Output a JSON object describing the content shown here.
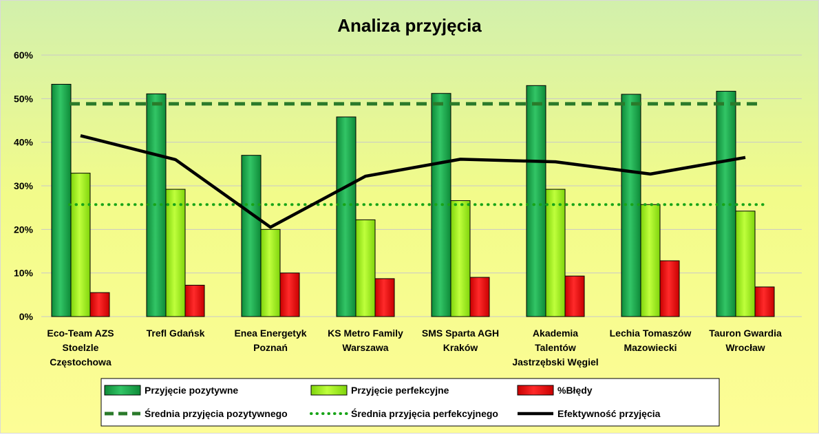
{
  "chart_data": {
    "type": "bar",
    "title": "Analiza przyjęcia",
    "categories": [
      [
        "Eco-Team AZS",
        "Stoelzle",
        "Częstochowa"
      ],
      [
        "Trefl Gdańsk"
      ],
      [
        "Enea Energetyk",
        "Poznań"
      ],
      [
        "KS Metro Family",
        "Warszawa"
      ],
      [
        "SMS Sparta AGH",
        "Kraków"
      ],
      [
        "Akademia",
        "Talentów",
        "Jastrzębski Węgiel"
      ],
      [
        "Lechia Tomaszów",
        "Mazowiecki"
      ],
      [
        "Tauron Gwardia",
        "Wrocław"
      ]
    ],
    "ylim": [
      0,
      0.6
    ],
    "yticks": [
      0,
      0.1,
      0.2,
      0.3,
      0.4,
      0.5,
      0.6
    ],
    "ytick_labels": [
      "0%",
      "10%",
      "20%",
      "30%",
      "40%",
      "50%",
      "60%"
    ],
    "grid": true,
    "legend_position": "bottom",
    "series": [
      {
        "name": "Przyjęcie pozytywne",
        "kind": "bar",
        "color": "#1aa84a",
        "values": [
          0.533,
          0.511,
          0.37,
          0.458,
          0.512,
          0.53,
          0.51,
          0.517
        ]
      },
      {
        "name": "Przyjęcie perfekcyjne",
        "kind": "bar",
        "color": "#99ee22",
        "values": [
          0.329,
          0.292,
          0.2,
          0.222,
          0.266,
          0.292,
          0.257,
          0.242
        ]
      },
      {
        "name": "%Błędy",
        "kind": "bar",
        "color": "#ee1111",
        "values": [
          0.055,
          0.072,
          0.1,
          0.087,
          0.09,
          0.093,
          0.128,
          0.068
        ]
      },
      {
        "name": "Średnia przyjęcia pozytywnego",
        "kind": "line",
        "style": "dashed",
        "color": "#2a7a2a",
        "values": [
          0.488,
          0.488,
          0.488,
          0.488,
          0.488,
          0.488,
          0.488,
          0.488
        ]
      },
      {
        "name": "Średnia przyjęcia perfekcyjnego",
        "kind": "line",
        "style": "dotted",
        "color": "#18a418",
        "values": [
          0.257,
          0.257,
          0.257,
          0.257,
          0.257,
          0.257,
          0.257,
          0.257
        ]
      },
      {
        "name": "Efektywność przyjęcia",
        "kind": "line",
        "style": "solid",
        "color": "#000000",
        "values": [
          0.415,
          0.36,
          0.205,
          0.322,
          0.361,
          0.355,
          0.327,
          0.365
        ]
      }
    ]
  }
}
